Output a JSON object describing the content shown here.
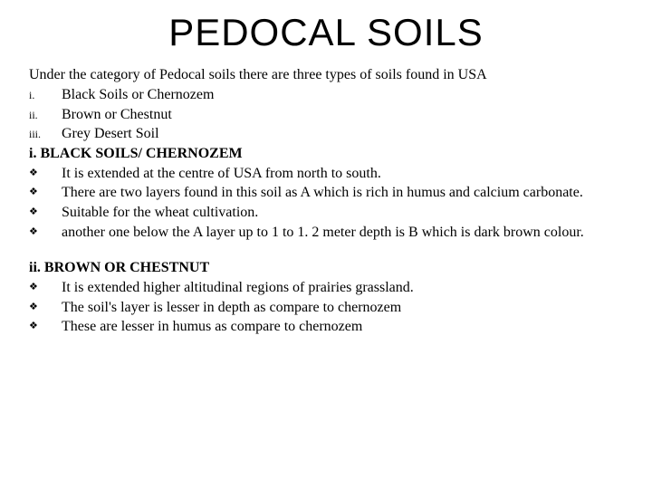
{
  "title": "PEDOCAL SOILS",
  "intro": "Under the category of Pedocal soils there are three types of soils found in USA",
  "roman": {
    "items": [
      {
        "num": "i.",
        "text": "Black Soils or Chernozem"
      },
      {
        "num": "ii.",
        "text": "Brown or Chestnut"
      },
      {
        "num": "iii.",
        "text": "Grey Desert Soil"
      }
    ]
  },
  "section1": {
    "heading": "i. BLACK SOILS/ CHERNOZEM",
    "bullets": [
      "It is extended at the centre of USA from north to south.",
      "There are two layers found in this soil as A which is rich in humus and calcium carbonate.",
      "Suitable for the wheat cultivation.",
      "another one  below the A layer up to 1 to 1. 2 meter depth is  B which is  dark brown colour."
    ]
  },
  "section2": {
    "heading": "ii. BROWN OR CHESTNUT",
    "bullets": [
      "It is  extended higher altitudinal regions of prairies grassland.",
      "The soil's layer is lesser in depth as compare to chernozem",
      "These are lesser in humus as compare to chernozem"
    ]
  },
  "bullet_marker": "❖",
  "colors": {
    "text": "#000000",
    "background": "#ffffff"
  }
}
